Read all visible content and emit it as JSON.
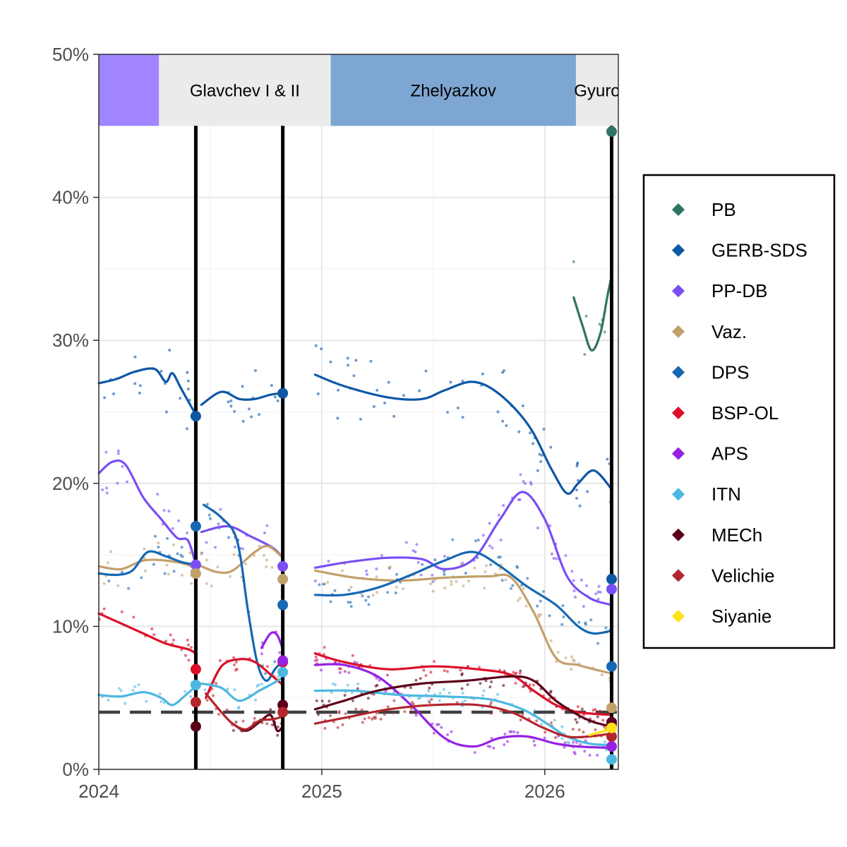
{
  "chart_data": {
    "type": "line",
    "title": "",
    "xlabel": "",
    "ylabel": "",
    "x_domain": [
      2024.0,
      2026.33
    ],
    "ylim": [
      0,
      50
    ],
    "y_ticks": [
      0,
      10,
      20,
      30,
      40,
      50
    ],
    "y_tick_labels": [
      "0%",
      "10%",
      "20%",
      "30%",
      "40%",
      "50%"
    ],
    "x_ticks": [
      2024,
      2025,
      2026
    ],
    "x_tick_labels": [
      "2024",
      "2025",
      "2026"
    ],
    "threshold": 4,
    "elections": [
      2024.435,
      2024.825,
      2026.3
    ],
    "legend_position": "right",
    "governments": [
      {
        "name": "",
        "start": 2024.0,
        "end": 2024.27,
        "color": "#a184ff"
      },
      {
        "name": "Glavchev I & II",
        "start": 2024.27,
        "end": 2025.04,
        "color": "#ebebeb"
      },
      {
        "name": "Zhelyazkov",
        "start": 2025.04,
        "end": 2026.14,
        "color": "#7ea6d3"
      },
      {
        "name": "Gyuro",
        "start": 2026.14,
        "end": 2026.33,
        "color": "#ebebeb"
      }
    ],
    "series": [
      {
        "name": "PB",
        "color": "#2e7462",
        "segments": [
          [
            [
              2026.13,
              33
            ],
            [
              2026.17,
              31
            ],
            [
              2026.21,
              29.3
            ],
            [
              2026.25,
              30.5
            ],
            [
              2026.28,
              33
            ],
            [
              2026.3,
              34.5
            ]
          ]
        ],
        "results": [
          [
            2026.3,
            44.6
          ]
        ]
      },
      {
        "name": "GERB-SDS",
        "color": "#0d57a5",
        "segments": [
          [
            [
              2024.0,
              27
            ],
            [
              2024.08,
              27.3
            ],
            [
              2024.16,
              27.8
            ],
            [
              2024.25,
              28.0
            ],
            [
              2024.3,
              27.1
            ],
            [
              2024.33,
              27.7
            ],
            [
              2024.37,
              26.6
            ],
            [
              2024.435,
              24.8
            ]
          ],
          [
            [
              2024.46,
              25.5
            ],
            [
              2024.55,
              26.4
            ],
            [
              2024.63,
              25.9
            ],
            [
              2024.7,
              25.9
            ],
            [
              2024.77,
              26.2
            ],
            [
              2024.825,
              26.3
            ]
          ],
          [
            [
              2024.97,
              27.6
            ],
            [
              2025.1,
              26.8
            ],
            [
              2025.3,
              26.0
            ],
            [
              2025.45,
              25.9
            ],
            [
              2025.55,
              26.5
            ],
            [
              2025.68,
              27.1
            ],
            [
              2025.8,
              26.2
            ],
            [
              2025.93,
              24.0
            ],
            [
              2026.03,
              21.0
            ],
            [
              2026.1,
              19.3
            ],
            [
              2026.15,
              20.0
            ],
            [
              2026.22,
              20.9
            ],
            [
              2026.3,
              19.6
            ]
          ]
        ],
        "results": [
          [
            2024.435,
            24.7
          ],
          [
            2024.825,
            26.3
          ],
          [
            2026.3,
            13.3
          ]
        ]
      },
      {
        "name": "PP-DB",
        "color": "#7a4ef5",
        "segments": [
          [
            [
              2024.0,
              20.7
            ],
            [
              2024.06,
              21.5
            ],
            [
              2024.12,
              21.3
            ],
            [
              2024.2,
              19.0
            ],
            [
              2024.28,
              17.5
            ],
            [
              2024.35,
              16.2
            ],
            [
              2024.4,
              16.0
            ],
            [
              2024.435,
              14.3
            ]
          ],
          [
            [
              2024.46,
              16.6
            ],
            [
              2024.58,
              17.0
            ],
            [
              2024.68,
              16.3
            ],
            [
              2024.78,
              15.5
            ],
            [
              2024.825,
              14.8
            ]
          ],
          [
            [
              2024.97,
              14.1
            ],
            [
              2025.12,
              14.5
            ],
            [
              2025.3,
              14.8
            ],
            [
              2025.45,
              14.7
            ],
            [
              2025.55,
              14.0
            ],
            [
              2025.68,
              14.7
            ],
            [
              2025.8,
              17.5
            ],
            [
              2025.9,
              19.4
            ],
            [
              2026.0,
              17.5
            ],
            [
              2026.1,
              13.5
            ],
            [
              2026.2,
              12.0
            ],
            [
              2026.3,
              11.5
            ]
          ]
        ],
        "results": [
          [
            2024.435,
            14.3
          ],
          [
            2024.825,
            14.2
          ],
          [
            2026.3,
            12.6
          ]
        ]
      },
      {
        "name": "Vaz.",
        "color": "#c2a06a",
        "segments": [
          [
            [
              2024.0,
              14.2
            ],
            [
              2024.1,
              14.0
            ],
            [
              2024.2,
              14.6
            ],
            [
              2024.3,
              14.6
            ],
            [
              2024.4,
              14.3
            ],
            [
              2024.435,
              13.9
            ]
          ],
          [
            [
              2024.46,
              14.2
            ],
            [
              2024.53,
              13.8
            ],
            [
              2024.6,
              13.9
            ],
            [
              2024.7,
              15.2
            ],
            [
              2024.76,
              15.6
            ],
            [
              2024.825,
              14.8
            ]
          ],
          [
            [
              2024.97,
              13.9
            ],
            [
              2025.15,
              13.4
            ],
            [
              2025.35,
              13.2
            ],
            [
              2025.55,
              13.4
            ],
            [
              2025.75,
              13.5
            ],
            [
              2025.85,
              13.4
            ],
            [
              2025.95,
              11.0
            ],
            [
              2026.05,
              7.8
            ],
            [
              2026.15,
              7.3
            ],
            [
              2026.22,
              7.0
            ],
            [
              2026.3,
              6.7
            ]
          ]
        ],
        "results": [
          [
            2024.435,
            13.7
          ],
          [
            2024.825,
            13.3
          ],
          [
            2026.3,
            4.3
          ]
        ]
      },
      {
        "name": "DPS",
        "color": "#1668b3",
        "segments": [
          [
            [
              2024.0,
              13.7
            ],
            [
              2024.08,
              13.6
            ],
            [
              2024.15,
              13.9
            ],
            [
              2024.22,
              15.2
            ],
            [
              2024.3,
              14.9
            ],
            [
              2024.37,
              14.5
            ],
            [
              2024.435,
              14.3
            ]
          ],
          [
            [
              2024.47,
              18.5
            ],
            [
              2024.55,
              17.6
            ],
            [
              2024.62,
              16.0
            ],
            [
              2024.67,
              11.0
            ],
            [
              2024.71,
              7.5
            ],
            [
              2024.75,
              6.2
            ],
            [
              2024.79,
              7.0
            ],
            [
              2024.825,
              7.6
            ]
          ],
          [
            [
              2024.97,
              12.2
            ],
            [
              2025.1,
              12.2
            ],
            [
              2025.25,
              12.7
            ],
            [
              2025.4,
              13.6
            ],
            [
              2025.55,
              14.6
            ],
            [
              2025.68,
              15.2
            ],
            [
              2025.8,
              14.2
            ],
            [
              2025.92,
              12.8
            ],
            [
              2026.05,
              11.5
            ],
            [
              2026.15,
              10.0
            ],
            [
              2026.22,
              9.5
            ],
            [
              2026.3,
              9.7
            ]
          ]
        ],
        "results": [
          [
            2024.435,
            17.0
          ],
          [
            2024.825,
            11.5
          ],
          [
            2026.3,
            7.2
          ]
        ]
      },
      {
        "name": "BSP-OL",
        "color": "#dc0f28",
        "segments": [
          [
            [
              2024.0,
              10.9
            ],
            [
              2024.1,
              10.2
            ],
            [
              2024.2,
              9.5
            ],
            [
              2024.3,
              8.8
            ],
            [
              2024.4,
              8.4
            ],
            [
              2024.435,
              8.1
            ]
          ],
          [
            [
              2024.48,
              5.0
            ],
            [
              2024.55,
              7.2
            ],
            [
              2024.63,
              7.7
            ],
            [
              2024.7,
              7.5
            ],
            [
              2024.78,
              6.5
            ],
            [
              2024.825,
              5.9
            ]
          ],
          [
            [
              2024.97,
              8.1
            ],
            [
              2025.1,
              7.5
            ],
            [
              2025.3,
              7.0
            ],
            [
              2025.5,
              7.2
            ],
            [
              2025.7,
              7.0
            ],
            [
              2025.85,
              6.6
            ],
            [
              2025.95,
              5.5
            ],
            [
              2026.05,
              4.5
            ],
            [
              2026.15,
              4.0
            ],
            [
              2026.3,
              3.8
            ]
          ]
        ],
        "results": [
          [
            2024.435,
            7.0
          ],
          [
            2024.825,
            7.5
          ],
          [
            2026.3,
            3.1
          ]
        ]
      },
      {
        "name": "APS",
        "color": "#9521e3",
        "segments": [
          [
            [
              2024.73,
              8.5
            ],
            [
              2024.77,
              9.5
            ],
            [
              2024.8,
              9.4
            ],
            [
              2024.825,
              8.4
            ]
          ],
          [
            [
              2024.97,
              7.3
            ],
            [
              2025.1,
              7.3
            ],
            [
              2025.25,
              6.5
            ],
            [
              2025.4,
              4.5
            ],
            [
              2025.55,
              2.2
            ],
            [
              2025.68,
              1.6
            ],
            [
              2025.8,
              2.2
            ],
            [
              2025.92,
              2.3
            ],
            [
              2026.05,
              1.8
            ],
            [
              2026.15,
              1.6
            ],
            [
              2026.3,
              1.5
            ]
          ]
        ],
        "results": [
          [
            2024.825,
            7.6
          ],
          [
            2026.3,
            1.6
          ]
        ]
      },
      {
        "name": "ITN",
        "color": "#4cb8e0",
        "segments": [
          [
            [
              2024.0,
              5.2
            ],
            [
              2024.1,
              5.1
            ],
            [
              2024.2,
              5.4
            ],
            [
              2024.28,
              5.0
            ],
            [
              2024.33,
              4.5
            ],
            [
              2024.39,
              5.2
            ],
            [
              2024.435,
              5.8
            ]
          ],
          [
            [
              2024.46,
              6.0
            ],
            [
              2024.55,
              5.7
            ],
            [
              2024.63,
              4.8
            ],
            [
              2024.72,
              5.5
            ],
            [
              2024.78,
              6.0
            ],
            [
              2024.825,
              6.4
            ]
          ],
          [
            [
              2024.97,
              5.5
            ],
            [
              2025.15,
              5.5
            ],
            [
              2025.35,
              5.2
            ],
            [
              2025.55,
              5.1
            ],
            [
              2025.75,
              4.9
            ],
            [
              2025.9,
              4.2
            ],
            [
              2026.0,
              3.3
            ],
            [
              2026.1,
              2.3
            ],
            [
              2026.2,
              1.8
            ],
            [
              2026.3,
              1.7
            ]
          ]
        ],
        "results": [
          [
            2024.435,
            5.9
          ],
          [
            2024.825,
            6.8
          ],
          [
            2026.3,
            0.7
          ]
        ]
      },
      {
        "name": "MECh",
        "color": "#5b0018",
        "segments": [
          [
            [
              2024.6,
              3.2
            ],
            [
              2024.66,
              2.7
            ],
            [
              2024.72,
              3.3
            ],
            [
              2024.77,
              3.8
            ],
            [
              2024.8,
              2.7
            ],
            [
              2024.825,
              3.0
            ]
          ],
          [
            [
              2024.97,
              4.2
            ],
            [
              2025.1,
              4.8
            ],
            [
              2025.25,
              5.5
            ],
            [
              2025.45,
              6.0
            ],
            [
              2025.65,
              6.2
            ],
            [
              2025.85,
              6.5
            ],
            [
              2025.95,
              6.2
            ],
            [
              2026.05,
              4.8
            ],
            [
              2026.15,
              3.8
            ],
            [
              2026.22,
              3.3
            ],
            [
              2026.3,
              3.0
            ]
          ]
        ],
        "results": [
          [
            2024.435,
            3.0
          ],
          [
            2024.825,
            4.5
          ],
          [
            2026.3,
            3.3
          ]
        ]
      },
      {
        "name": "Velichie",
        "color": "#b2262d",
        "segments": [
          [
            [
              2024.48,
              5.3
            ],
            [
              2024.55,
              4.0
            ],
            [
              2024.6,
              3.2
            ],
            [
              2024.66,
              2.8
            ],
            [
              2024.72,
              3.4
            ],
            [
              2024.78,
              3.5
            ],
            [
              2024.825,
              3.7
            ]
          ],
          [
            [
              2024.97,
              3.2
            ],
            [
              2025.1,
              3.6
            ],
            [
              2025.3,
              4.2
            ],
            [
              2025.5,
              4.5
            ],
            [
              2025.7,
              4.5
            ],
            [
              2025.85,
              4.0
            ],
            [
              2025.98,
              3.0
            ],
            [
              2026.1,
              2.3
            ],
            [
              2026.2,
              2.3
            ],
            [
              2026.3,
              2.5
            ]
          ]
        ],
        "results": [
          [
            2024.435,
            4.7
          ],
          [
            2024.825,
            4.0
          ],
          [
            2026.3,
            2.3
          ]
        ]
      },
      {
        "name": "Siyanie",
        "color": "#ffe11a",
        "segments": [
          [
            [
              2026.2,
              2.4
            ],
            [
              2026.25,
              2.6
            ],
            [
              2026.3,
              2.8
            ]
          ]
        ],
        "results": [
          [
            2026.3,
            2.9
          ]
        ]
      }
    ]
  }
}
